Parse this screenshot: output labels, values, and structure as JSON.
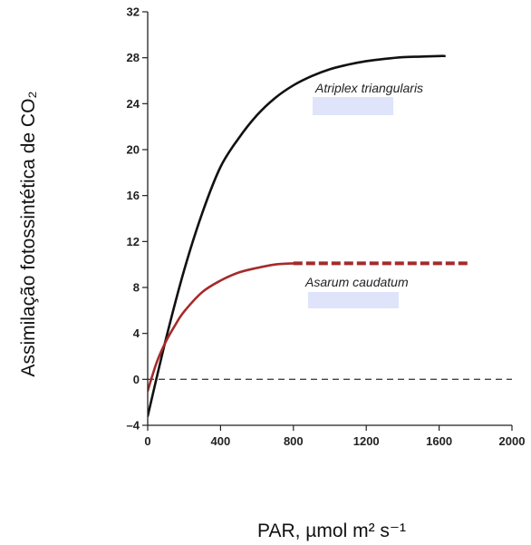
{
  "chart_data": {
    "type": "line",
    "title": "",
    "xlabel": "PAR, µmol m² s⁻¹",
    "ylabel": "Assimilação fotossintética de CO₂",
    "xlim": [
      0,
      2000
    ],
    "ylim": [
      -4,
      32
    ],
    "xticks": [
      0,
      400,
      800,
      1200,
      1600,
      2000
    ],
    "yticks": [
      -4,
      0,
      4,
      8,
      12,
      16,
      20,
      24,
      28,
      32
    ],
    "xtick_labels": [
      "0",
      "400",
      "800",
      "1200",
      "1600",
      "2000"
    ],
    "ytick_labels": [
      "–4",
      "0",
      "4",
      "8",
      "12",
      "16",
      "20",
      "24",
      "28",
      "32"
    ],
    "grid": false,
    "zero_reference_line": 0,
    "series": [
      {
        "name": "Atriplex triangularis",
        "color": "#111111",
        "style": "solid",
        "x": [
          0,
          100,
          200,
          300,
          400,
          500,
          600,
          700,
          800,
          900,
          1000,
          1100,
          1200,
          1300,
          1400,
          1500,
          1600,
          1630
        ],
        "y": [
          -3.2,
          3.5,
          9.5,
          14.5,
          18.5,
          21.0,
          23.0,
          24.5,
          25.6,
          26.4,
          27.0,
          27.4,
          27.7,
          27.9,
          28.05,
          28.1,
          28.15,
          28.15
        ]
      },
      {
        "name": "Asarum caudatum",
        "color": "#a52a2a",
        "style": "solid",
        "x": [
          0,
          50,
          100,
          150,
          200,
          300,
          400,
          500,
          600,
          700,
          800
        ],
        "y": [
          -1.0,
          1.5,
          3.3,
          4.7,
          5.9,
          7.6,
          8.6,
          9.3,
          9.7,
          10.0,
          10.1
        ]
      },
      {
        "name": "Asarum caudatum",
        "color": "#a52a2a",
        "style": "dashed",
        "x": [
          800,
          1760
        ],
        "y": [
          10.1,
          10.1
        ]
      }
    ]
  }
}
